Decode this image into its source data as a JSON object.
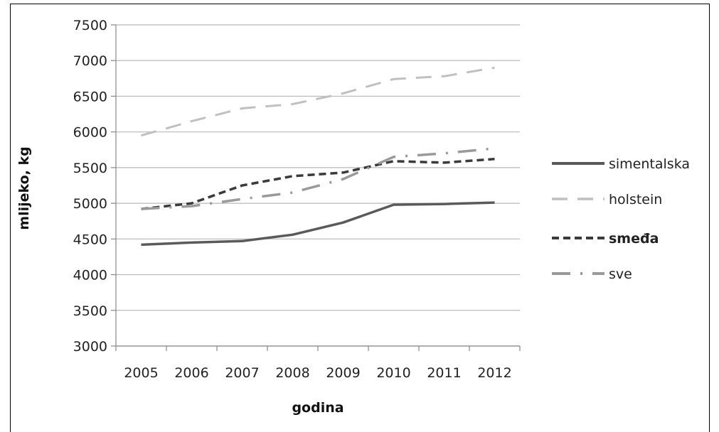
{
  "chart_data": {
    "type": "line",
    "title": "",
    "xlabel": "godina",
    "ylabel": "mlijeko, kg",
    "ylim": [
      3000,
      7500
    ],
    "yticks": [
      3000,
      3500,
      4000,
      4500,
      5000,
      5500,
      6000,
      6500,
      7000,
      7500
    ],
    "categories": [
      "2005",
      "2006",
      "2007",
      "2008",
      "2009",
      "2010",
      "2011",
      "2012"
    ],
    "grid": true,
    "legend_position": "right",
    "series": [
      {
        "name": "simentalska",
        "values": [
          4420,
          4450,
          4470,
          4560,
          4730,
          4980,
          4990,
          5010
        ],
        "color": "#5a5a5a",
        "style": "solid"
      },
      {
        "name": "holstein",
        "values": [
          5950,
          6150,
          6330,
          6390,
          6540,
          6740,
          6780,
          6900
        ],
        "color": "#c0c0c0",
        "style": "dashed"
      },
      {
        "name": "smeđa",
        "values": [
          4920,
          5000,
          5250,
          5380,
          5430,
          5590,
          5570,
          5620
        ],
        "color": "#3a3a3a",
        "style": "short-dash"
      },
      {
        "name": "sve",
        "values": [
          4920,
          4960,
          5060,
          5150,
          5340,
          5650,
          5700,
          5770
        ],
        "color": "#9a9a9a",
        "style": "dash-dot"
      }
    ]
  }
}
